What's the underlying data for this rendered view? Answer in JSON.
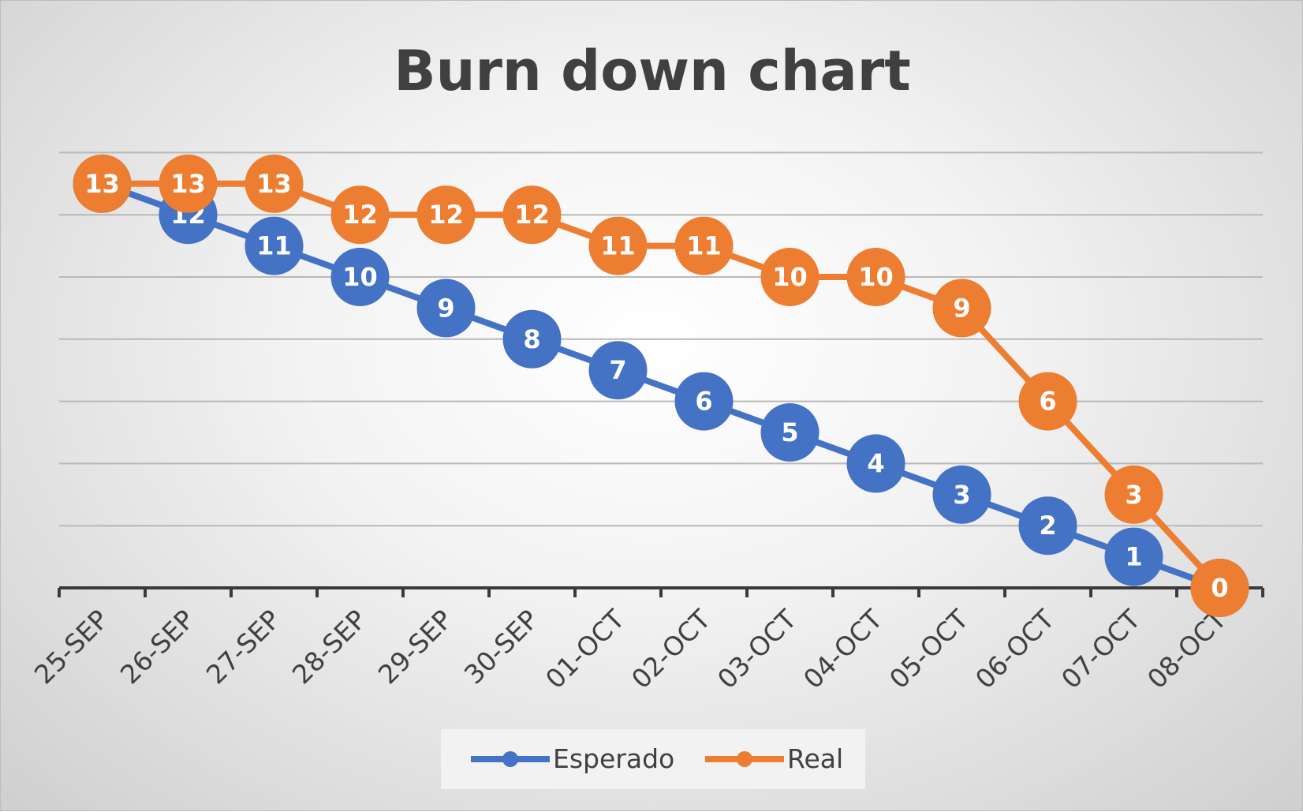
{
  "chart_data": {
    "type": "line",
    "title": "Burn down chart",
    "xlabel": "",
    "ylabel": "",
    "categories": [
      "25-SEP",
      "26-SEP",
      "27-SEP",
      "28-SEP",
      "29-SEP",
      "30-SEP",
      "01-OCT",
      "02-OCT",
      "03-OCT",
      "04-OCT",
      "05-OCT",
      "06-OCT",
      "07-OCT",
      "08-OCT"
    ],
    "ylim": [
      0,
      14
    ],
    "grid": true,
    "legend_position": "bottom",
    "series": [
      {
        "name": "Esperado",
        "color": "#4472C4",
        "values": [
          13,
          12,
          11,
          10,
          9,
          8,
          7,
          6,
          5,
          4,
          3,
          2,
          1,
          0
        ]
      },
      {
        "name": "Real",
        "color": "#ED7D31",
        "values": [
          13,
          13,
          13,
          12,
          12,
          12,
          11,
          11,
          10,
          10,
          9,
          6,
          3,
          0
        ]
      }
    ]
  }
}
